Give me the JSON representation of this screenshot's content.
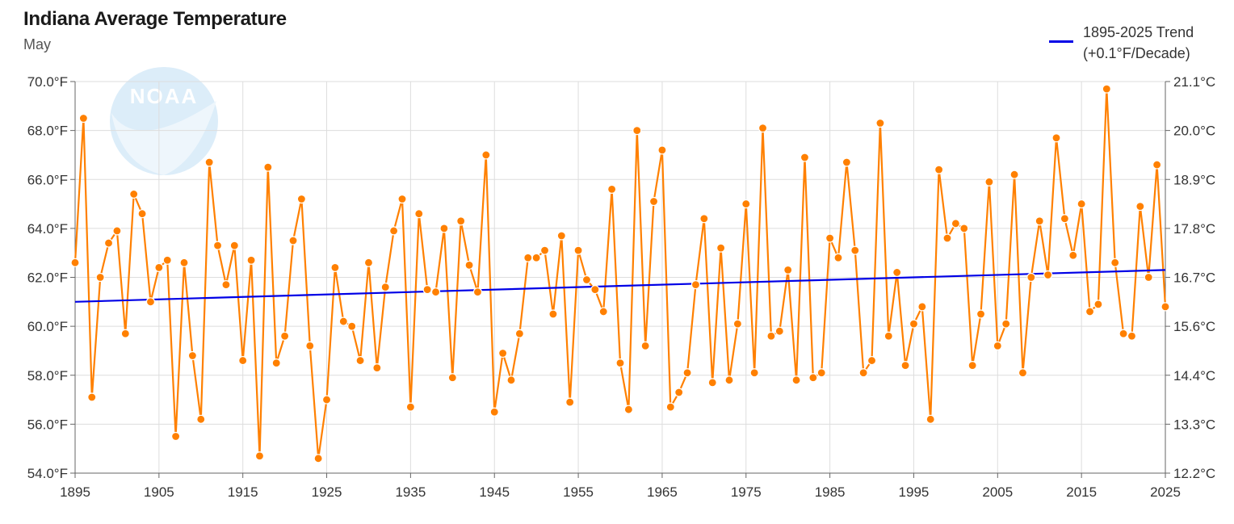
{
  "title": "Indiana Average Temperature",
  "subtitle": "May",
  "watermark": {
    "text": "NOAA",
    "color": "#cfe7f7"
  },
  "legend": {
    "line1": "1895-2025 Trend",
    "line2": "(+0.1°F/Decade)",
    "color": "#0000e6"
  },
  "chart_data": {
    "type": "line",
    "title": "Indiana Average Temperature",
    "subtitle": "May",
    "x_range": [
      1895,
      2025
    ],
    "ylim": [
      54.0,
      70.0
    ],
    "y_ticks": [
      "54.0°F",
      "56.0°F",
      "58.0°F",
      "60.0°F",
      "62.0°F",
      "64.0°F",
      "66.0°F",
      "68.0°F",
      "70.0°F"
    ],
    "y_tick_values": [
      54,
      56,
      58,
      60,
      62,
      64,
      66,
      68,
      70
    ],
    "y2_ticks": [
      "12.2°C",
      "13.3°C",
      "14.4°C",
      "15.6°C",
      "16.7°C",
      "17.8°C",
      "18.9°C",
      "20.0°C",
      "21.1°C"
    ],
    "x_ticks": [
      "1895",
      "1905",
      "1915",
      "1925",
      "1935",
      "1945",
      "1955",
      "1965",
      "1975",
      "1985",
      "1995",
      "2005",
      "2015",
      "2025"
    ],
    "x_tick_values": [
      1895,
      1905,
      1915,
      1925,
      1935,
      1945,
      1955,
      1965,
      1975,
      1985,
      1995,
      2005,
      2015,
      2025
    ],
    "grid": true,
    "legend_position": "top-right",
    "series": [
      {
        "color": "#ff8000",
        "years": [
          1895,
          1896,
          1897,
          1898,
          1899,
          1900,
          1901,
          1902,
          1903,
          1904,
          1905,
          1906,
          1907,
          1908,
          1909,
          1910,
          1911,
          1912,
          1913,
          1914,
          1915,
          1916,
          1917,
          1918,
          1919,
          1920,
          1921,
          1922,
          1923,
          1924,
          1925,
          1926,
          1927,
          1928,
          1929,
          1930,
          1931,
          1932,
          1933,
          1934,
          1935,
          1936,
          1937,
          1938,
          1939,
          1940,
          1941,
          1942,
          1943,
          1944,
          1945,
          1946,
          1947,
          1948,
          1949,
          1950,
          1951,
          1952,
          1953,
          1954,
          1955,
          1956,
          1957,
          1958,
          1959,
          1960,
          1961,
          1962,
          1963,
          1964,
          1965,
          1966,
          1967,
          1968,
          1969,
          1970,
          1971,
          1972,
          1973,
          1974,
          1975,
          1976,
          1977,
          1978,
          1979,
          1980,
          1981,
          1982,
          1983,
          1984,
          1985,
          1986,
          1987,
          1988,
          1989,
          1990,
          1991,
          1992,
          1993,
          1994,
          1995,
          1996,
          1997,
          1998,
          1999,
          2000,
          2001,
          2002,
          2003,
          2004,
          2005,
          2006,
          2007,
          2008,
          2009,
          2010,
          2011,
          2012,
          2013,
          2014,
          2015,
          2016,
          2017,
          2018,
          2019,
          2020,
          2021,
          2022,
          2023,
          2024,
          2025
        ],
        "values": [
          62.6,
          68.5,
          57.1,
          62.0,
          63.4,
          63.9,
          59.7,
          65.4,
          64.6,
          61.0,
          62.4,
          62.7,
          55.5,
          62.6,
          58.8,
          56.2,
          66.7,
          63.3,
          61.7,
          63.3,
          58.6,
          62.7,
          54.7,
          66.5,
          58.5,
          59.6,
          63.5,
          65.2,
          59.2,
          54.6,
          57.0,
          62.4,
          60.2,
          60.0,
          58.6,
          62.6,
          58.3,
          61.6,
          63.9,
          65.2,
          56.7,
          64.6,
          61.5,
          61.4,
          64.0,
          57.9,
          64.3,
          62.5,
          61.4,
          67.0,
          56.5,
          58.9,
          57.8,
          59.7,
          62.8,
          62.8,
          63.1,
          60.5,
          63.7,
          56.9,
          63.1,
          61.9,
          61.5,
          60.6,
          65.6,
          58.5,
          56.6,
          68.0,
          59.2,
          65.1,
          67.2,
          56.7,
          57.3,
          58.1,
          61.7,
          64.4,
          57.7,
          63.2,
          57.8,
          60.1,
          65.0,
          58.1,
          68.1,
          59.6,
          59.8,
          62.3,
          57.8,
          66.9,
          57.9,
          58.1,
          63.6,
          62.8,
          66.7,
          63.1,
          58.1,
          58.6,
          68.3,
          59.6,
          62.2,
          58.4,
          60.1,
          60.8,
          56.2,
          66.4,
          63.6,
          64.2,
          64.0,
          58.4,
          60.5,
          65.9,
          59.2,
          60.1,
          66.2,
          58.1,
          62.0,
          64.3,
          62.1,
          67.7,
          64.4,
          62.9,
          65.0,
          60.6,
          60.9,
          69.7,
          62.6,
          59.7,
          59.6,
          64.9,
          62.0,
          66.6,
          60.8
        ]
      },
      {
        "name": "1895-2025 Trend",
        "color": "#0000e6",
        "years": [
          1895,
          2025
        ],
        "values": [
          61.0,
          62.3
        ]
      }
    ]
  }
}
